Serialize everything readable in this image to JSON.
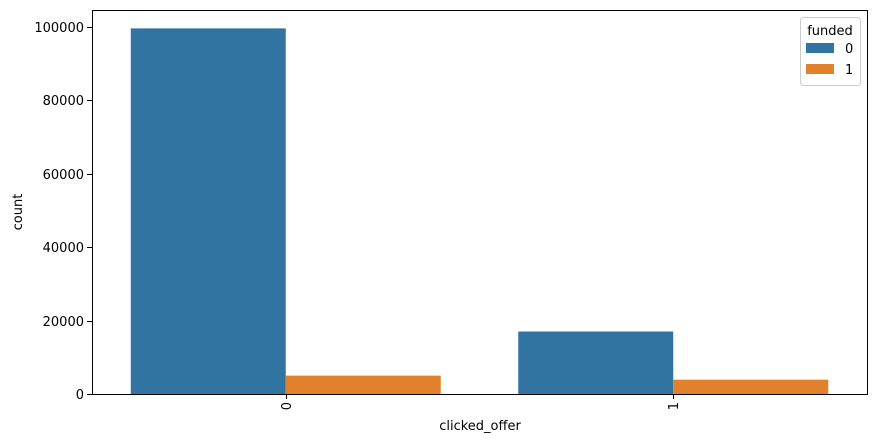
{
  "chart_data": {
    "type": "bar",
    "xlabel": "clicked_offer",
    "ylabel": "count",
    "categories": [
      "0",
      "1"
    ],
    "legend": {
      "title": "funded",
      "placement": "top-right"
    },
    "series": [
      {
        "name": "0",
        "color": "#3274a1",
        "values": [
          99500,
          17000
        ]
      },
      {
        "name": "1",
        "color": "#e1812c",
        "values": [
          5000,
          3900
        ]
      }
    ],
    "ylim": [
      0,
      104500
    ],
    "yticks": [
      0,
      20000,
      40000,
      60000,
      80000,
      100000
    ],
    "ytick_labels": [
      "0",
      "20000",
      "40000",
      "60000",
      "80000",
      "100000"
    ],
    "grid": false
  }
}
